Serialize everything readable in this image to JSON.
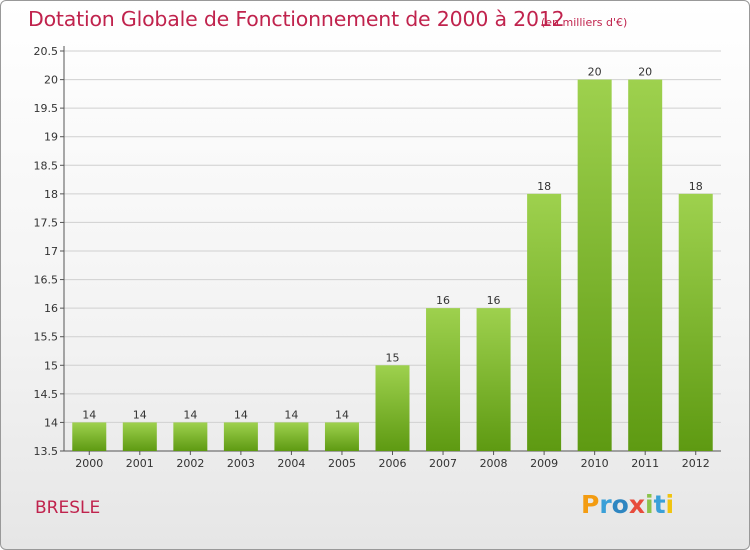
{
  "title": "Dotation Globale de Fonctionnement de 2000 à 2012",
  "subtitle": "(en milliers d'€)",
  "town": "BRESLE",
  "logo": {
    "text": "Proxiti",
    "letters": [
      "P",
      "r",
      "o",
      "x",
      "i",
      "t",
      "i"
    ]
  },
  "colors": {
    "title": "#c0234d",
    "bar_top": "#9ed14e",
    "bar_bottom": "#5e9a12",
    "grid": "#d0d0d0"
  },
  "chart_data": {
    "type": "bar",
    "title": "Dotation Globale de Fonctionnement de 2000 à 2012",
    "subtitle": "(en milliers d'€)",
    "categories": [
      "2000",
      "2001",
      "2002",
      "2003",
      "2004",
      "2005",
      "2006",
      "2007",
      "2008",
      "2009",
      "2010",
      "2011",
      "2012"
    ],
    "values": [
      14,
      14,
      14,
      14,
      14,
      14,
      15,
      16,
      16,
      18,
      20,
      20,
      18
    ],
    "plotted_values": [
      14.0,
      14.0,
      14.0,
      14.0,
      14.0,
      14.0,
      15.0,
      16.0,
      16.0,
      18.0,
      20.0,
      20.0,
      18.0
    ],
    "data_labels": [
      "14",
      "14",
      "14",
      "14",
      "14",
      "14",
      "15",
      "16",
      "16",
      "18",
      "20",
      "20",
      "18"
    ],
    "yticks": [
      "13.5",
      "14",
      "14.5",
      "15",
      "15.5",
      "16",
      "16.5",
      "17",
      "17.5",
      "18",
      "18.5",
      "19",
      "19.5",
      "20",
      "20.5"
    ],
    "ylim": [
      13.5,
      20.5
    ],
    "grid": true,
    "xlabel": "",
    "ylabel": ""
  }
}
